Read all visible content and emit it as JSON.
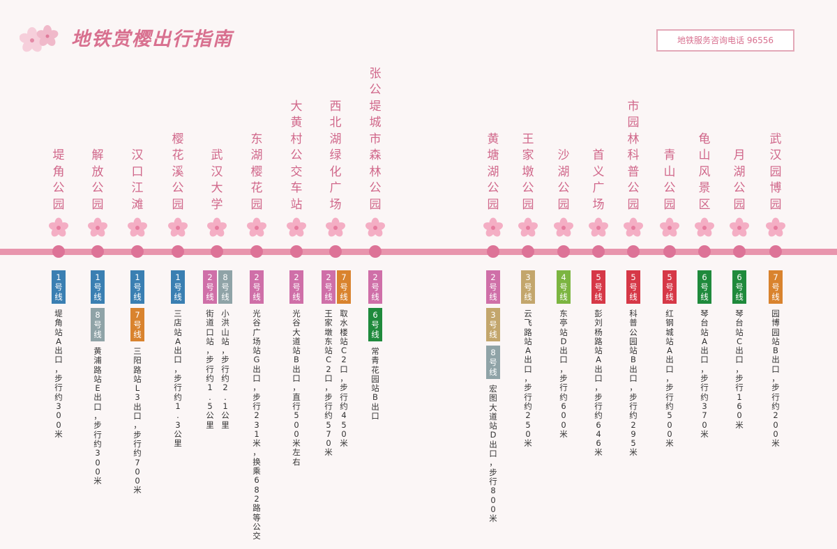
{
  "page_title": "地铁赏樱出行指南",
  "hotline": "地铁服务咨询电话 96556",
  "icons": {
    "header": "cherry-blossom-icon",
    "stop": "cherry-blossom-icon"
  },
  "colors": {
    "accent": "#d8708f",
    "rail": "#e895ad",
    "line1": "#3a7fb2",
    "line2": "#cf6fa8",
    "line3": "#c3a66c",
    "line4": "#7cb541",
    "line5": "#d63847",
    "line6": "#1f8a3c",
    "line7": "#d9832e",
    "line8": "#8fa3a7"
  },
  "stops": [
    {
      "name": "堤角公园",
      "columns": [
        {
          "lines": [
            "1"
          ],
          "exit": "堤角站A出口，步行约300米"
        }
      ]
    },
    {
      "name": "解放公园",
      "columns": [
        {
          "lines": [
            "1",
            "8"
          ],
          "exit": "黄浦路站E出口，步行约300米"
        }
      ]
    },
    {
      "name": "汉口江滩",
      "columns": [
        {
          "lines": [
            "1",
            "7"
          ],
          "exit": "三阳路站L3出口，步行约700米"
        }
      ]
    },
    {
      "name": "樱花溪公园",
      "columns": [
        {
          "lines": [
            "1"
          ],
          "exit": "三店站A出口，步行约1.3公里"
        }
      ]
    },
    {
      "name": "武汉大学",
      "columns": [
        {
          "lines": [
            "2"
          ],
          "exit": "街道口站，步行约1.5公里"
        },
        {
          "lines": [
            "8"
          ],
          "exit": "小洪山站，步行约2.1公里"
        }
      ]
    },
    {
      "name": "东湖樱花园",
      "columns": [
        {
          "lines": [
            "2"
          ],
          "exit": "光谷广场站G出口，步行231米，换乘682路等公交"
        }
      ]
    },
    {
      "name": "大黄村公交车站",
      "columns": [
        {
          "lines": [
            "2"
          ],
          "exit": "光谷大道站B出口，直行500米左右"
        }
      ]
    },
    {
      "name": "西北湖绿化广场",
      "columns": [
        {
          "lines": [
            "2"
          ],
          "exit": "王家墩东站C2口，步行约570米"
        },
        {
          "lines": [
            "7"
          ],
          "exit": "取水楼站C2口，步行约450米"
        }
      ]
    },
    {
      "name": "张公堤城市森林公园",
      "columns": [
        {
          "lines": [
            "2",
            "6"
          ],
          "exit": "常青花园站B出口"
        }
      ]
    },
    {
      "name": "黄塘湖公园",
      "columns": [
        {
          "lines": [
            "2",
            "3",
            "8"
          ],
          "exit": "宏图大道站D出口，步行800米"
        }
      ]
    },
    {
      "name": "王家墩公园",
      "columns": [
        {
          "lines": [
            "3"
          ],
          "exit": "云飞路站A出口，步行约250米"
        }
      ]
    },
    {
      "name": "沙湖公园",
      "columns": [
        {
          "lines": [
            "4"
          ],
          "exit": "东亭站D出口，步行约600米"
        }
      ]
    },
    {
      "name": "首义广场",
      "columns": [
        {
          "lines": [
            "5"
          ],
          "exit": "彭刘杨路站A出口，步行约646米"
        }
      ]
    },
    {
      "name": "市园林科普公园",
      "columns": [
        {
          "lines": [
            "5"
          ],
          "exit": "科普公园站B出口，步行约295米"
        }
      ]
    },
    {
      "name": "青山公园",
      "columns": [
        {
          "lines": [
            "5"
          ],
          "exit": "红钢城站A出口，步行约500米"
        }
      ]
    },
    {
      "name": "龟山风景区",
      "columns": [
        {
          "lines": [
            "6"
          ],
          "exit": "琴台站A出口，步行约370米"
        }
      ]
    },
    {
      "name": "月湖公园",
      "columns": [
        {
          "lines": [
            "6"
          ],
          "exit": "琴台站C出口，步行160米"
        }
      ]
    },
    {
      "name": "武汉园博园",
      "columns": [
        {
          "lines": [
            "7"
          ],
          "exit": "园博园站B出口，步行约200米"
        }
      ]
    }
  ]
}
